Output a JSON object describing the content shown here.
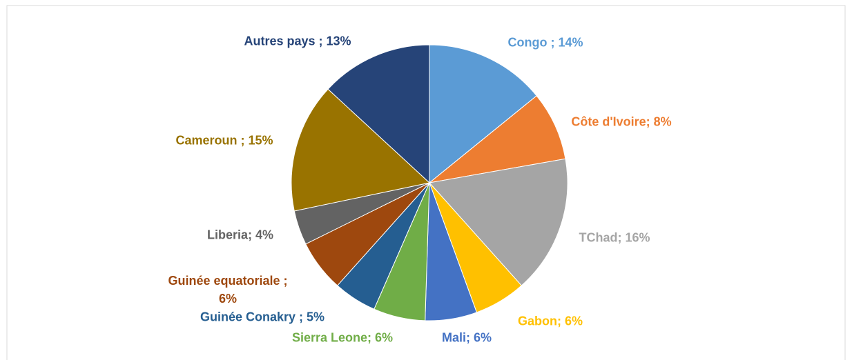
{
  "chart_data": {
    "type": "pie",
    "values": [
      14,
      8,
      16,
      6,
      6,
      6,
      5,
      6,
      4,
      15,
      13
    ],
    "value_labels": [
      "Congo ; 14%",
      "Côte d'Ivoire; 8%",
      "TChad; 16%",
      "Gabon; 6%",
      "Mali; 6%",
      "Sierra Leone; 6%",
      "Guinée Conakry ; 5%",
      "Guinée equatoriale ; 6%",
      "Liberia; 4%",
      "Cameroun ; 15%",
      "Autres pays ; 13%"
    ],
    "colors": [
      "#5b9bd5",
      "#ed7d31",
      "#a5a5a5",
      "#ffc000",
      "#4472c4",
      "#70ad47",
      "#255e91",
      "#9e480e",
      "#636363",
      "#997300",
      "#264478"
    ]
  }
}
